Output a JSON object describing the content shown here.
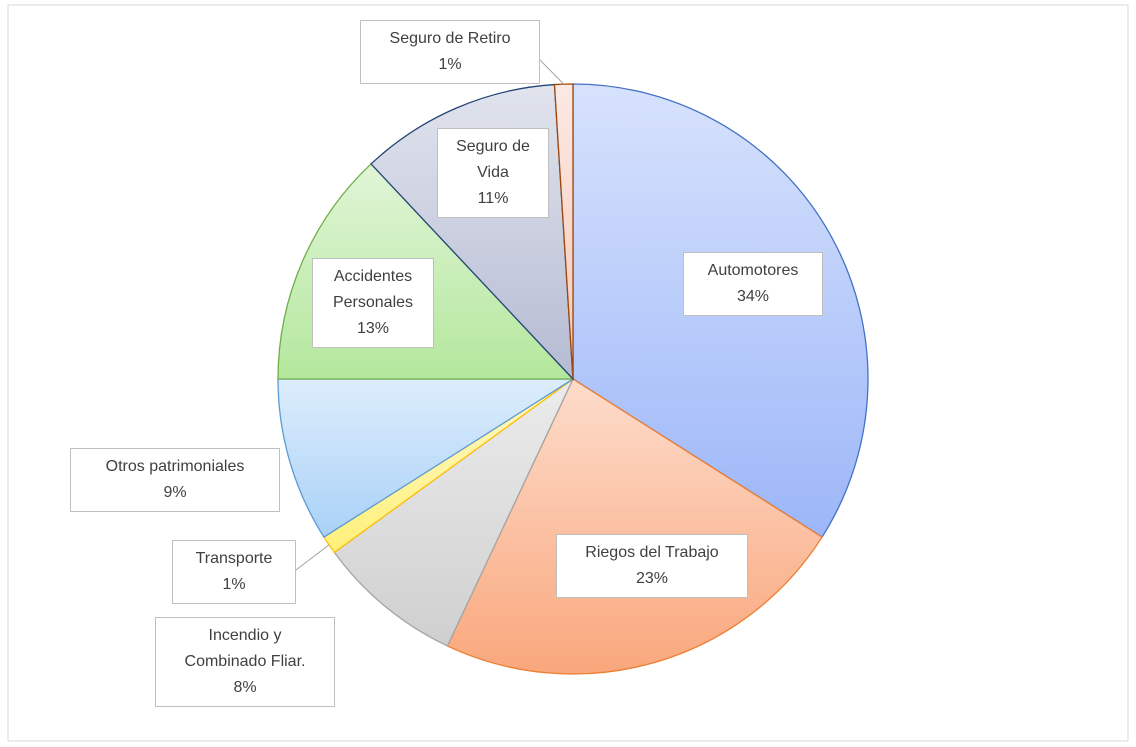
{
  "chart_data": {
    "type": "pie",
    "categories": [
      "Automotores",
      "Riegos del Trabajo",
      "Incendio y Combinado Fliar.",
      "Transporte",
      "Otros patrimoniales",
      "Accidentes Personales",
      "Seguro de Vida",
      "Seguro de Retiro"
    ],
    "values": [
      34,
      23,
      8,
      1,
      9,
      13,
      11,
      1
    ],
    "value_labels": [
      "34%",
      "23%",
      "8%",
      "1%",
      "9%",
      "13%",
      "11%",
      "1%"
    ],
    "colors": [
      "#9cb6f8",
      "#f9a77c",
      "#cfcfcf",
      "#fff07a",
      "#a9d1f7",
      "#b3e79c",
      "#b5bbd3",
      "#f5c8b8"
    ],
    "edgecolors": [
      "#4472c4",
      "#ed7d31",
      "#a5a5a5",
      "#ffc000",
      "#5b9bd5",
      "#70ad47",
      "#264478",
      "#9e480e"
    ]
  }
}
